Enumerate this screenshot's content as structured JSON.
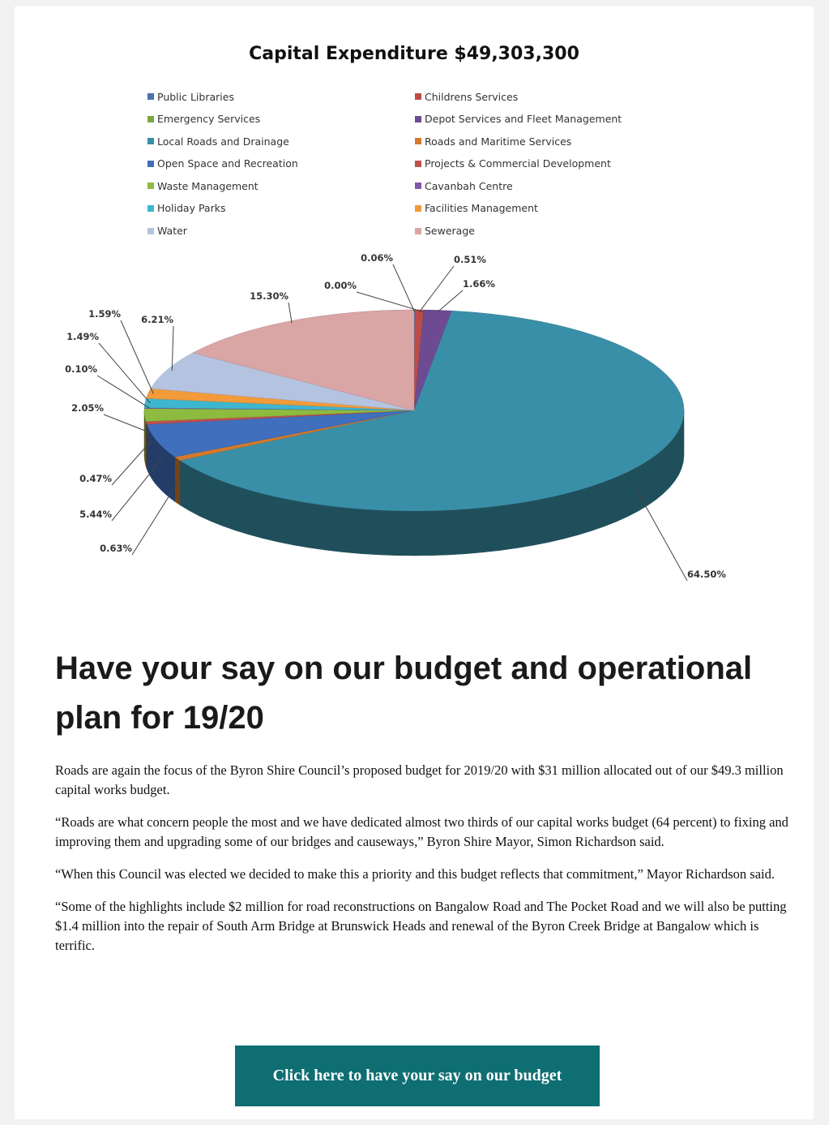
{
  "chart_data": {
    "type": "pie",
    "title": "Capital Expenditure $49,303,300",
    "legend_position": "top",
    "series": [
      {
        "name": "Public Libraries",
        "value": 0.06,
        "label": "0.06%",
        "color": "#4a72b0"
      },
      {
        "name": "Childrens Services",
        "value": 0.51,
        "label": "0.51%",
        "color": "#be4b48"
      },
      {
        "name": "Emergency Services",
        "value": 0.0,
        "label": "0.00%",
        "color": "#7ba73f"
      },
      {
        "name": "Depot Services and Fleet Management",
        "value": 1.66,
        "label": "1.66%",
        "color": "#6e4a93"
      },
      {
        "name": "Local Roads and Drainage",
        "value": 64.5,
        "label": "64.50%",
        "color": "#3a8fa8"
      },
      {
        "name": "Roads and Maritime Services",
        "value": 0.63,
        "label": "0.63%",
        "color": "#d47a2c"
      },
      {
        "name": "Open Space and Recreation",
        "value": 5.44,
        "label": "5.44%",
        "color": "#3f6fbd"
      },
      {
        "name": "Projects & Commercial Development",
        "value": 0.47,
        "label": "0.47%",
        "color": "#c0504d"
      },
      {
        "name": "Waste Management",
        "value": 2.05,
        "label": "2.05%",
        "color": "#8dbb3f"
      },
      {
        "name": "Cavanbah Centre",
        "value": 0.1,
        "label": "0.10%",
        "color": "#7f5aa6"
      },
      {
        "name": "Holiday Parks",
        "value": 1.49,
        "label": "1.49%",
        "color": "#3fb6cf"
      },
      {
        "name": "Facilities Management",
        "value": 1.59,
        "label": "1.59%",
        "color": "#f39a3a"
      },
      {
        "name": "Water",
        "value": 6.21,
        "label": "6.21%",
        "color": "#b4c4e0"
      },
      {
        "name": "Sewerage",
        "value": 15.3,
        "label": "15.30%",
        "color": "#d9a5a5"
      }
    ]
  },
  "article": {
    "headline": "Have your say on our budget and operational plan for 19/20",
    "paragraphs": [
      "Roads are again the focus of the Byron Shire Council’s proposed budget for 2019/20 with $31 million allocated out of our $49.3 million capital works budget.",
      "“Roads are what concern people the most and we have dedicated almost two thirds of our capital works budget (64 percent) to fixing and improving them and upgrading some of our bridges and causeways,” Byron Shire Mayor, Simon Richardson said.",
      "“When this Council was elected we decided to make this a priority and this budget reflects that commitment,” Mayor Richardson said.",
      "“Some of the highlights include $2 million for road reconstructions on Bangalow Road and The Pocket Road and we will also be putting $1.4 million into the repair of South Arm Bridge at Brunswick Heads and renewal of the Byron Creek Bridge at Bangalow which is terrific."
    ],
    "cta_label": "Click here to have your say on our budget"
  }
}
